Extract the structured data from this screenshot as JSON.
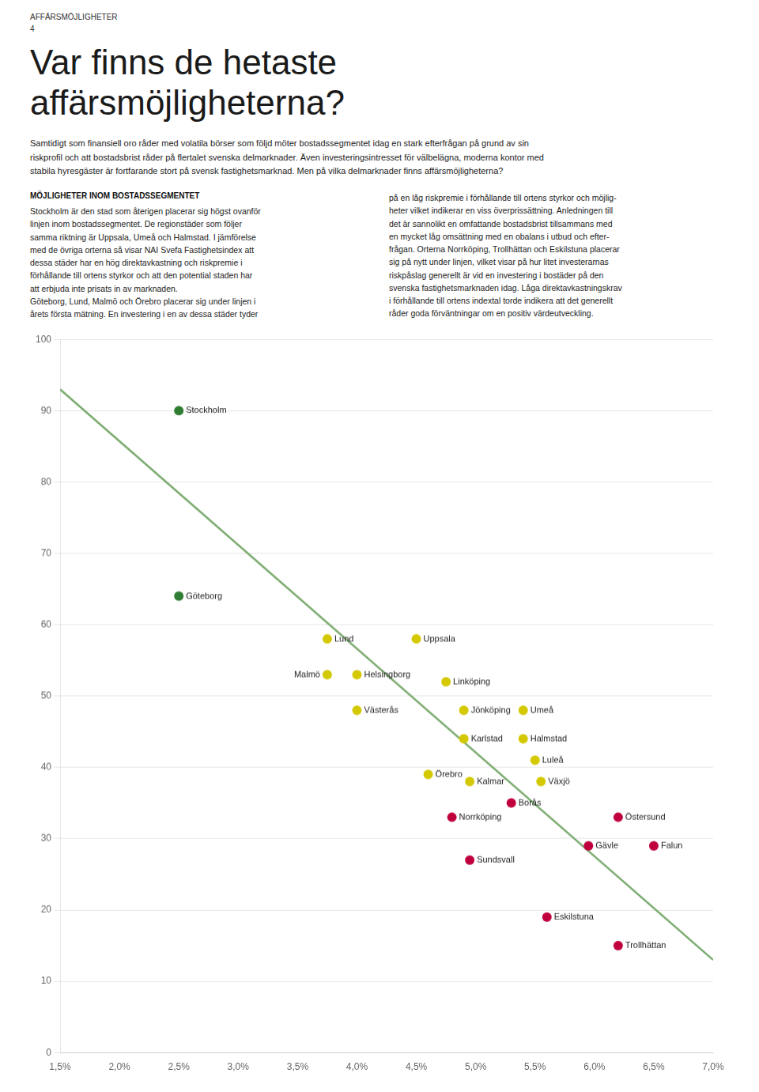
{
  "chart_data": {
    "type": "scatter",
    "title": "Var finns de hetaste\naffärsmöjligheterna?",
    "annotations": [
      "AFFÄRSMÖJLIGHETER",
      "4",
      "Samtidigt som finansiell oro råder med volatila börser som följd möter bostadssegmentet idag en stark efterfrågan på grund av sin\nriskprofil och att bostadsbrist råder på flertalet svenska delmarknader. Även investeringsintresset för välbelägna, moderna kontor med\nstabila hyresgäster är fortfarande stort på svensk fastighetsmarknad. Men på vilka delmarknader finns affärsmöjligheterna?",
      "MÖJLIGHETER INOM BOSTADSSEGMENTET",
      "Stockholm är den stad som återigen placerar sig högst ovanför\nlinjen inom bostadssegmentet. De regionstäder som följer\nsamma riktning är Uppsala, Umeå och Halmstad. I jämförelse\nmed de övriga orterna så visar NAI Svefa Fastighetsindex att\ndessa städer har en hög direktavkastning och riskpremie i\nförhållande till ortens styrkor och att den potential staden har\natt erbjuda inte prisats in av marknaden.\nGöteborg, Lund, Malmö och Örebro placerar sig under linjen i\nårets första mätning. En investering i en av dessa städer tyder",
      "på en låg riskpremie i förhållande till ortens styrkor och möjlig-\nheter vilket indikerar en viss överprissättning. Anledningen till\ndet är sannolikt en omfattande bostadsbrist tillsammans med\nen mycket låg omsättning med en obalans i utbud och efter-\nfrågan. Orterna Norrköping, Trollhättan och Eskilstuna placerar\nsig på nytt under linjen, vilket visar på hur litet investerarnas\nriskpåslag generellt är vid en investering i bostäder på den\nsvenska fastighetsmarknaden idag. Låga direktavkastningskrav\ni förhållande till ortens indextal torde indikera att det generellt\nråder goda förväntningar om en positiv värdeutveckling."
    ],
    "series": [
      {
        "type": "scatter",
        "x": [
          2.5,
          2.5,
          3.75,
          3.75,
          4.0,
          4.5,
          4.0,
          4.75,
          4.9,
          4.9,
          5.4,
          5.4,
          5.5,
          4.6,
          4.95,
          5.55,
          5.3,
          4.8,
          4.95,
          6.2,
          5.95,
          6.5,
          5.6,
          6.2
        ],
        "values": [
          90,
          64,
          58,
          53,
          53,
          58,
          48,
          52,
          48,
          44,
          48,
          44,
          41,
          39,
          38,
          38,
          35,
          33,
          27,
          33,
          29,
          29,
          19,
          15
        ],
        "colors": [
          "#2e7d32",
          "#2e7d32",
          "#d4c800",
          "#d4c800",
          "#d4c800",
          "#d4c800",
          "#d4c800",
          "#d4c800",
          "#d4c800",
          "#d4c800",
          "#d4c800",
          "#d4c800",
          "#d4c800",
          "#d4c800",
          "#d4c800",
          "#d4c800",
          "#c0003c",
          "#c0003c",
          "#c0003c",
          "#c0003c",
          "#c0003c",
          "#c0003c",
          "#c0003c",
          "#c0003c"
        ],
        "labels": [
          "Stockholm",
          "Göteborg",
          "Lund",
          "Malmö",
          "Helsingborg",
          "Uppsala",
          "Västerås",
          "Linköping",
          "Jönköping",
          "Karlstad",
          "Umeå",
          "Halmstad",
          "Luleå",
          "Örebro",
          "Kalmar",
          "Växjö",
          "Borås",
          "Norrköping",
          "Sundsvall",
          "Östersund",
          "Gävle",
          "Falun",
          "Eskilstuna",
          "Trollhättan"
        ]
      },
      {
        "type": "line",
        "x": [
          1.5,
          7.0
        ],
        "values": [
          93,
          13
        ],
        "color": "#7aaa6e"
      }
    ],
    "xlim": [
      1.5,
      7.0
    ],
    "ylim": [
      0,
      100
    ],
    "xticks": [
      {
        "value": 1.5,
        "label": "1,5%"
      },
      {
        "value": 2.0,
        "label": "2,0%"
      },
      {
        "value": 2.5,
        "label": "2,5%"
      },
      {
        "value": 3.0,
        "label": "3,0%"
      },
      {
        "value": 3.5,
        "label": "3,5%"
      },
      {
        "value": 4.0,
        "label": "4,0%"
      },
      {
        "value": 4.5,
        "label": "4,5%"
      },
      {
        "value": 5.0,
        "label": "5,0%"
      },
      {
        "value": 5.5,
        "label": "5,5%"
      },
      {
        "value": 6.0,
        "label": "6,0%"
      },
      {
        "value": 6.5,
        "label": "6,5%"
      },
      {
        "value": 7.0,
        "label": "7,0%"
      }
    ],
    "yticks": [
      0,
      10,
      20,
      30,
      40,
      50,
      60,
      70,
      80,
      90,
      100
    ],
    "grid": "y"
  }
}
